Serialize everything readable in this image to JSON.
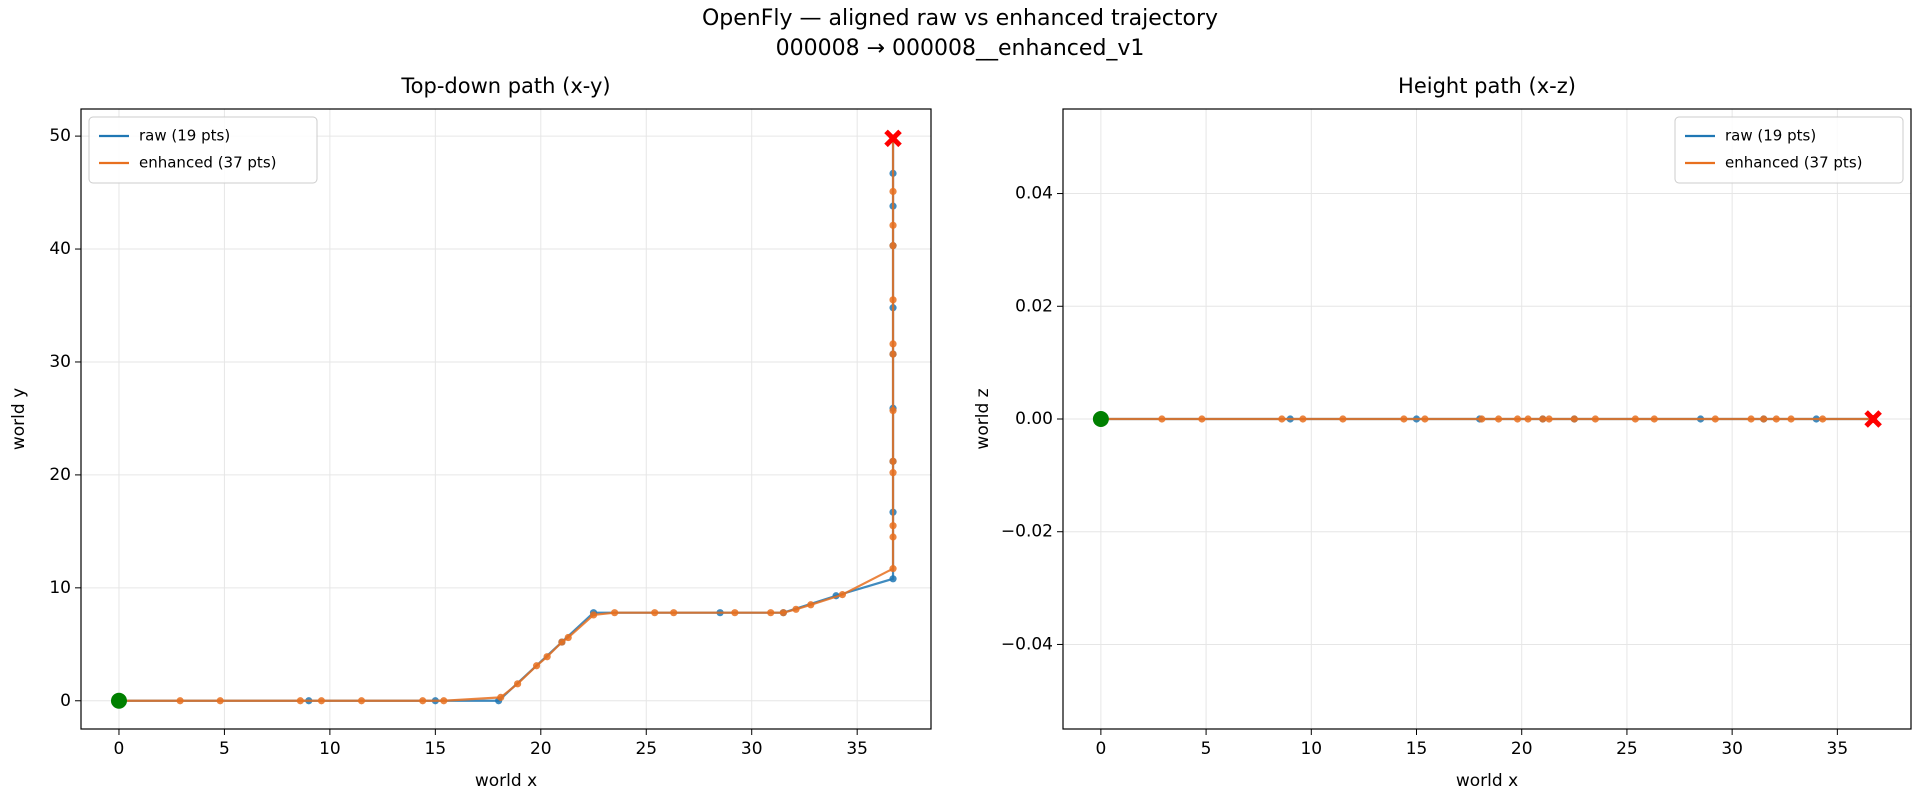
{
  "figure": {
    "title": "OpenFly — aligned raw vs enhanced trajectory",
    "subtitle": "000008  →  000008__enhanced_v1"
  },
  "chart_data": [
    {
      "type": "line",
      "title": "Top-down path (x-y)",
      "x_label": "world x",
      "y_label": "world y",
      "xlim": [
        -1.8,
        38.5
      ],
      "ylim": [
        -2.5,
        52.4
      ],
      "xticks": [
        0,
        5,
        10,
        15,
        20,
        25,
        30,
        35
      ],
      "yticks": [
        0,
        10,
        20,
        30,
        40,
        50
      ],
      "grid": true,
      "legend": "upper left",
      "series": [
        {
          "name": "raw (19 pts)",
          "color": "#1f77b4",
          "x": [
            0,
            9.0,
            15.0,
            18.0,
            21.0,
            22.5,
            28.5,
            31.5,
            34.0,
            36.7,
            36.7,
            36.7,
            36.7,
            36.7,
            36.7,
            36.7,
            36.7,
            36.7,
            36.7
          ],
          "values": [
            0,
            0,
            0,
            0,
            5.2,
            7.8,
            7.8,
            7.8,
            9.3,
            10.8,
            16.7,
            21.2,
            25.9,
            30.7,
            34.8,
            40.3,
            43.8,
            46.7,
            49.8
          ]
        },
        {
          "name": "enhanced (37 pts)",
          "color": "#e8701f",
          "x": [
            0,
            2.9,
            4.8,
            8.6,
            9.6,
            11.5,
            14.4,
            15.4,
            18.1,
            18.9,
            19.8,
            20.3,
            21.0,
            21.3,
            22.5,
            23.5,
            25.4,
            26.3,
            29.2,
            30.9,
            31.5,
            32.1,
            32.8,
            34.3,
            36.7,
            36.7,
            36.7,
            36.7,
            36.7,
            36.7,
            36.7,
            36.7,
            36.7,
            36.7,
            36.7,
            36.7,
            36.7
          ],
          "values": [
            0,
            0,
            0,
            0,
            0,
            0,
            0,
            0,
            0.3,
            1.5,
            3.1,
            3.9,
            5.2,
            5.6,
            7.6,
            7.8,
            7.8,
            7.8,
            7.8,
            7.8,
            7.8,
            8.1,
            8.5,
            9.4,
            11.7,
            14.5,
            15.5,
            20.2,
            21.2,
            25.7,
            30.7,
            31.6,
            35.5,
            40.3,
            42.1,
            45.1,
            49.8
          ]
        }
      ],
      "markers": [
        {
          "x": 0,
          "y": 0,
          "color": "#008000",
          "shape": "circle"
        },
        {
          "x": 36.7,
          "y": 49.8,
          "color": "#ff0000",
          "shape": "x"
        }
      ]
    },
    {
      "type": "line",
      "title": "Height path (x-z)",
      "x_label": "world x",
      "y_label": "world z",
      "xlim": [
        -1.8,
        38.5
      ],
      "ylim": [
        -0.055,
        0.055
      ],
      "xticks": [
        0,
        5,
        10,
        15,
        20,
        25,
        30,
        35
      ],
      "yticks": [
        {
          "value": -0.04,
          "label": "−0.04"
        },
        {
          "value": -0.02,
          "label": "−0.02"
        },
        {
          "value": 0,
          "label": "0.00"
        },
        0.02,
        0.04
      ],
      "grid": true,
      "legend": "upper right",
      "series": [
        {
          "name": "raw (19 pts)",
          "color": "#1f77b4",
          "x": [
            0,
            9.0,
            15.0,
            18.0,
            21.0,
            22.5,
            28.5,
            31.5,
            34.0,
            36.7,
            36.7,
            36.7,
            36.7,
            36.7,
            36.7,
            36.7,
            36.7,
            36.7,
            36.7
          ],
          "values": [
            0,
            0,
            0,
            0,
            0,
            0,
            0,
            0,
            0,
            0,
            0,
            0,
            0,
            0,
            0,
            0,
            0,
            0,
            0
          ]
        },
        {
          "name": "enhanced (37 pts)",
          "color": "#e8701f",
          "x": [
            0,
            2.9,
            4.8,
            8.6,
            9.6,
            11.5,
            14.4,
            15.4,
            18.1,
            18.9,
            19.8,
            20.3,
            21.0,
            21.3,
            22.5,
            23.5,
            25.4,
            26.3,
            29.2,
            30.9,
            31.5,
            32.1,
            32.8,
            34.3,
            36.7,
            36.7,
            36.7,
            36.7,
            36.7,
            36.7,
            36.7,
            36.7,
            36.7,
            36.7,
            36.7,
            36.7,
            36.7
          ],
          "values": [
            0,
            0,
            0,
            0,
            0,
            0,
            0,
            0,
            0,
            0,
            0,
            0,
            0,
            0,
            0,
            0,
            0,
            0,
            0,
            0,
            0,
            0,
            0,
            0,
            0,
            0,
            0,
            0,
            0,
            0,
            0,
            0,
            0,
            0,
            0,
            0,
            0
          ]
        }
      ],
      "markers": [
        {
          "x": 0,
          "y": 0,
          "color": "#008000",
          "shape": "circle"
        },
        {
          "x": 36.7,
          "y": 0,
          "color": "#ff0000",
          "shape": "x"
        }
      ]
    }
  ]
}
